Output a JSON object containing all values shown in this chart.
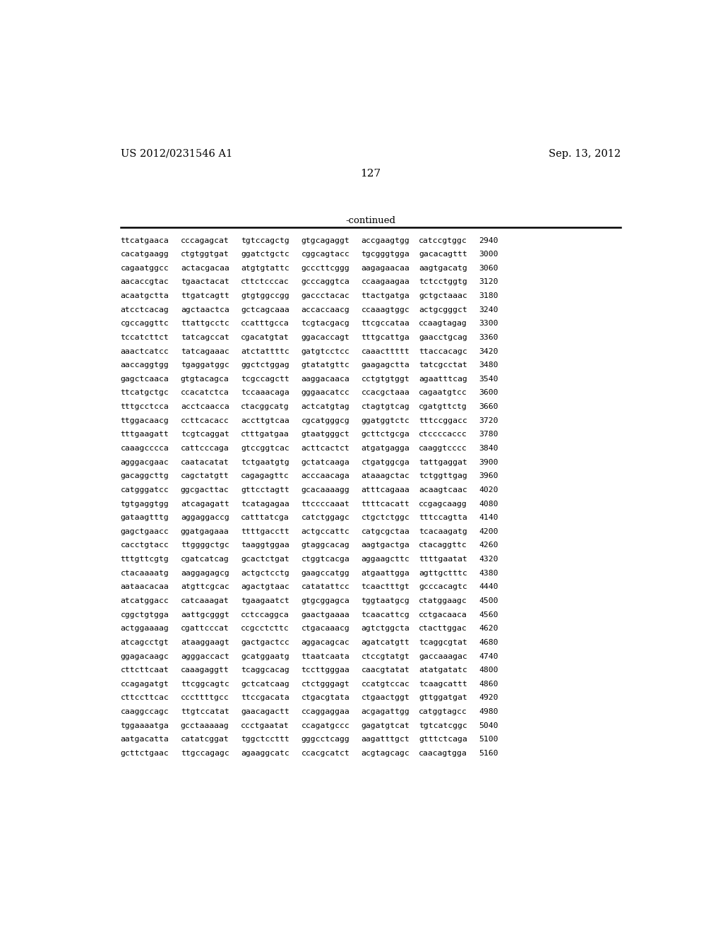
{
  "header_left": "US 2012/0231546 A1",
  "header_right": "Sep. 13, 2012",
  "page_number": "127",
  "continued_label": "-continued",
  "bg_color": "#ffffff",
  "header_fontsize": 10.5,
  "page_fontsize": 11,
  "seq_fontsize": 8.2,
  "lines": [
    [
      "ttcatgaaca",
      "cccagagcat",
      "tgtccagctg",
      "gtgcagaggt",
      "accgaagtgg",
      "catccgtggc",
      "2940"
    ],
    [
      "cacatgaagg",
      "ctgtggtgat",
      "ggatctgctc",
      "cggcagtacc",
      "tgcgggtgga",
      "gacacagttt",
      "3000"
    ],
    [
      "cagaatggcc",
      "actacgacaa",
      "atgtgtattc",
      "gcccttcggg",
      "aagagaacaa",
      "aagtgacatg",
      "3060"
    ],
    [
      "aacaccgtac",
      "tgaactacat",
      "cttctcccac",
      "gcccaggtca",
      "ccaagaagaa",
      "tctcctggtg",
      "3120"
    ],
    [
      "acaatgctta",
      "ttgatcagtt",
      "gtgtggccgg",
      "gaccctacac",
      "ttactgatga",
      "gctgctaaac",
      "3180"
    ],
    [
      "atcctcacag",
      "agctaactca",
      "gctcagcaaa",
      "accaccaacg",
      "ccaaagtggc",
      "actgcgggct",
      "3240"
    ],
    [
      "cgccaggttc",
      "ttattgcctc",
      "ccatttgcca",
      "tcgtacgacg",
      "ttcgccataa",
      "ccaagtagag",
      "3300"
    ],
    [
      "tccatcttct",
      "tatcagccat",
      "cgacatgtat",
      "ggacaccagt",
      "tttgcattga",
      "gaacctgcag",
      "3360"
    ],
    [
      "aaactcatcc",
      "tatcagaaac",
      "atctattttc",
      "gatgtcctcc",
      "caaacttttt",
      "ttaccacagc",
      "3420"
    ],
    [
      "aaccaggtgg",
      "tgaggatggc",
      "ggctctggag",
      "gtatatgttc",
      "gaagagctta",
      "tatcgcctat",
      "3480"
    ],
    [
      "gagctcaaca",
      "gtgtacagca",
      "tcgccagctt",
      "aaggacaaca",
      "cctgtgtggt",
      "agaatttcag",
      "3540"
    ],
    [
      "ttcatgctgc",
      "ccacatctca",
      "tccaaacaga",
      "gggaacatcc",
      "ccacgctaaa",
      "cagaatgtcc",
      "3600"
    ],
    [
      "tttgcctcca",
      "acctcaacca",
      "ctacggcatg",
      "actcatgtag",
      "ctagtgtcag",
      "cgatgttctg",
      "3660"
    ],
    [
      "ttggacaacg",
      "ccttcacacc",
      "accttgtcaa",
      "cgcatgggcg",
      "ggatggtctc",
      "tttccggacc",
      "3720"
    ],
    [
      "tttgaagatt",
      "tcgtcaggat",
      "ctttgatgaa",
      "gtaatgggct",
      "gcttctgcga",
      "ctccccaccc",
      "3780"
    ],
    [
      "caaagcccca",
      "cattcccaga",
      "gtccggtcac",
      "acttcactct",
      "atgatgagga",
      "caaggtcccc",
      "3840"
    ],
    [
      "agggacgaac",
      "caatacatat",
      "tctgaatgtg",
      "gctatcaaga",
      "ctgatggcga",
      "tattgaggat",
      "3900"
    ],
    [
      "gacaggcttg",
      "cagctatgtt",
      "cagagagttc",
      "acccaacaga",
      "ataaagctac",
      "tctggttgag",
      "3960"
    ],
    [
      "catgggatcc",
      "ggcgacttac",
      "gttcctagtt",
      "gcacaaaagg",
      "atttcagaaa",
      "acaagtcaac",
      "4020"
    ],
    [
      "tgtgaggtgg",
      "atcagagatt",
      "tcatagagaa",
      "ttccccaaat",
      "ttttcacatt",
      "ccgagcaagg",
      "4080"
    ],
    [
      "gataagtttg",
      "aggaggaccg",
      "catttatcga",
      "catctggagc",
      "ctgctctggc",
      "tttccagtta",
      "4140"
    ],
    [
      "gagctgaacc",
      "ggatgagaaa",
      "ttttgacctt",
      "actgccattc",
      "catgcgctaa",
      "tcacaagatg",
      "4200"
    ],
    [
      "cacctgtacc",
      "ttggggctgc",
      "taaggtggaa",
      "gtaggcacag",
      "aagtgactga",
      "ctacaggttc",
      "4260"
    ],
    [
      "tttgttcgtg",
      "cgatcatcag",
      "gcactctgat",
      "ctggtcacga",
      "aggaagcttc",
      "ttttgaatat",
      "4320"
    ],
    [
      "ctacaaaatg",
      "aaggagagcg",
      "actgctcctg",
      "gaagccatgg",
      "atgaattgga",
      "agttgctttc",
      "4380"
    ],
    [
      "aataacacaa",
      "atgttcgcac",
      "agactgtaac",
      "catatattcc",
      "tcaactttgt",
      "gcccacagtc",
      "4440"
    ],
    [
      "atcatggacc",
      "catcaaagat",
      "tgaagaatct",
      "gtgcggagca",
      "tggtaatgcg",
      "ctatggaagc",
      "4500"
    ],
    [
      "cggctgtgga",
      "aattgcgggt",
      "cctccaggca",
      "gaactgaaaa",
      "tcaacattcg",
      "cctgacaaca",
      "4560"
    ],
    [
      "actggaaaag",
      "cgattcccat",
      "ccgcctcttc",
      "ctgacaaacg",
      "agtctggcta",
      "ctacttggac",
      "4620"
    ],
    [
      "atcagcctgt",
      "ataaggaagt",
      "gactgactcc",
      "aggacagcac",
      "agatcatgtt",
      "tcaggcgtat",
      "4680"
    ],
    [
      "ggagacaagc",
      "agggaccact",
      "gcatggaatg",
      "ttaatcaata",
      "ctccgtatgt",
      "gaccaaagac",
      "4740"
    ],
    [
      "cttcttcaat",
      "caaagaggtt",
      "tcaggcacag",
      "tccttgggaa",
      "caacgtatat",
      "atatgatatc",
      "4800"
    ],
    [
      "ccagagatgt",
      "ttcggcagtc",
      "gctcatcaag",
      "ctctgggagt",
      "ccatgtccac",
      "tcaagcattt",
      "4860"
    ],
    [
      "cttccttcac",
      "cccttttgcc",
      "ttccgacata",
      "ctgacgtata",
      "ctgaactggt",
      "gttggatgat",
      "4920"
    ],
    [
      "caaggccagc",
      "ttgtccatat",
      "gaacagactt",
      "ccaggaggaa",
      "acgagattgg",
      "catggtagcc",
      "4980"
    ],
    [
      "tggaaaatga",
      "gcctaaaaag",
      "ccctgaatat",
      "ccagatgccc",
      "gagatgtcat",
      "tgtcatcggc",
      "5040"
    ],
    [
      "aatgacatta",
      "catatcggat",
      "tggctccttt",
      "gggcctcagg",
      "aagatttgct",
      "gtttctcaga",
      "5100"
    ],
    [
      "gcttctgaac",
      "ttgccagagc",
      "agaaggcatc",
      "ccacgcatct",
      "acgtagcagc",
      "caacagtgga",
      "5160"
    ]
  ]
}
